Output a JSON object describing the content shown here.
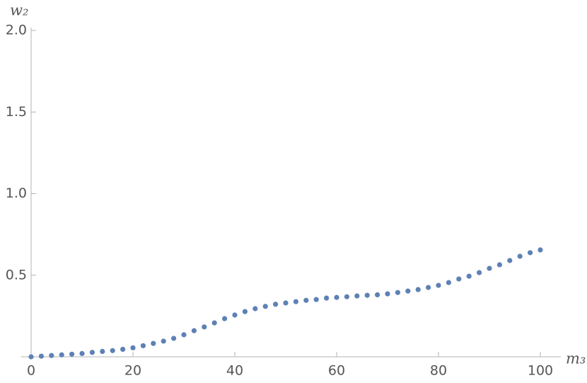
{
  "chart_data": {
    "type": "scatter",
    "x_label": "m₃",
    "y_label": "w₂",
    "series": [
      {
        "color": "#5e81b5",
        "x": [
          0,
          2,
          4,
          6,
          8,
          10,
          12,
          14,
          16,
          18,
          20,
          22,
          24,
          26,
          28,
          30,
          32,
          34,
          36,
          38,
          40,
          42,
          44,
          46,
          48,
          50,
          52,
          54,
          56,
          58,
          60,
          62,
          64,
          66,
          68,
          70,
          72,
          74,
          76,
          78,
          80,
          82,
          84,
          86,
          88,
          90,
          92,
          94,
          96,
          98,
          100
        ],
        "values": [
          0,
          0.004,
          0.008,
          0.012,
          0.016,
          0.02,
          0.027,
          0.033,
          0.038,
          0.046,
          0.055,
          0.068,
          0.082,
          0.096,
          0.113,
          0.135,
          0.16,
          0.183,
          0.208,
          0.234,
          0.256,
          0.277,
          0.295,
          0.309,
          0.322,
          0.33,
          0.338,
          0.346,
          0.351,
          0.36,
          0.364,
          0.368,
          0.373,
          0.377,
          0.38,
          0.386,
          0.394,
          0.403,
          0.412,
          0.425,
          0.438,
          0.455,
          0.477,
          0.494,
          0.516,
          0.542,
          0.564,
          0.59,
          0.616,
          0.638,
          0.655
        ]
      }
    ],
    "xlim": [
      -2,
      104
    ],
    "ylim": [
      0,
      2
    ],
    "xticks": [
      0,
      20,
      40,
      60,
      80,
      100
    ],
    "yticks": [
      0.5,
      {
        "value": 1,
        "label": "1.0"
      },
      1.5,
      {
        "value": 2,
        "label": "2.0"
      }
    ]
  }
}
